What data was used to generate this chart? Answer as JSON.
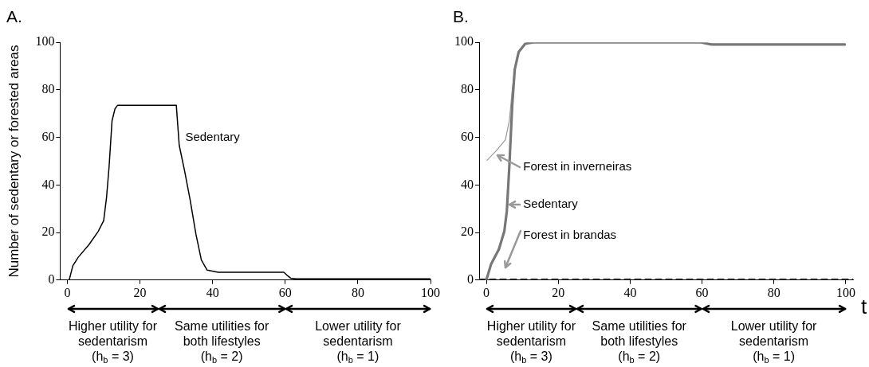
{
  "chart_data": [
    {
      "type": "line",
      "title": "A.",
      "ylabel": "Number of sedentary or forested areas",
      "xlim": [
        -2,
        100
      ],
      "xticks": [
        0,
        20,
        40,
        60,
        80,
        100
      ],
      "ylim": [
        0,
        100
      ],
      "yticks": [
        0,
        20,
        40,
        60,
        80,
        100
      ],
      "series": [
        {
          "color": "#000000",
          "x": [
            0.5,
            1,
            1.5,
            3,
            6,
            8.5,
            10,
            10.8,
            11.5,
            12.3,
            13.1,
            13.8,
            30,
            30.8,
            32.3,
            33.8,
            35.4,
            36.9,
            38.5,
            41.5,
            59.6,
            60.5,
            61.5,
            63,
            100
          ],
          "values": [
            0,
            3,
            6,
            9.6,
            15,
            20.5,
            25,
            35,
            48,
            67,
            72,
            73.5,
            73.5,
            56.7,
            45.8,
            33.8,
            19.3,
            8.4,
            4.2,
            3.3,
            3.3,
            2,
            0.8,
            0.5,
            0.5
          ]
        }
      ],
      "annotations": [
        "Sedentary",
        "Higher utility for\nsedentarism\n(h$_{b}$ = 3)",
        "Same utilities for\nboth lifestyles\n(h$_{b}$ = 2)",
        "Lower utility for\nsedentarism\n(h$_{b}$ = 1)"
      ]
    },
    {
      "type": "line",
      "title": "B.",
      "xlabel": "t",
      "xlim": [
        -2,
        102
      ],
      "xticks": [
        0,
        20,
        40,
        60,
        80,
        100
      ],
      "ylim": [
        0,
        100
      ],
      "yticks": [
        0,
        20,
        40,
        60,
        80,
        100
      ],
      "series": [
        {
          "color": "#777777",
          "x": [
            0,
            1.3,
            3.5,
            5,
            5.7,
            6.4,
            7.2,
            7.9,
            9,
            10.8,
            13,
            59.7,
            62.6,
            99.7
          ],
          "values": [
            0,
            6.6,
            13,
            20.5,
            29,
            48,
            73.5,
            88.6,
            96,
            99.4,
            100,
            100,
            99.1,
            99.1
          ]
        },
        {
          "color": "#999999",
          "x": [
            0.2,
            2.8,
            5.3,
            6.4,
            7.2,
            8
          ],
          "values": [
            50.4,
            54.5,
            59,
            67,
            80,
            90
          ]
        },
        {
          "color": "#555555",
          "line_style": "dashed",
          "x": [
            -2,
            102
          ],
          "values": [
            0.5,
            0.5
          ]
        }
      ],
      "annotations": [
        "Forest in inverneiras",
        "Sedentary",
        "Forest in brandas",
        "Higher utility for\nsedentarism\n(h$_{b}$ = 3)",
        "Same utilities for\nboth lifestyles\n(h$_{b}$ = 2)",
        "Lower utility for\nsedentarism\n(h$_{b}$ = 1)"
      ]
    }
  ]
}
